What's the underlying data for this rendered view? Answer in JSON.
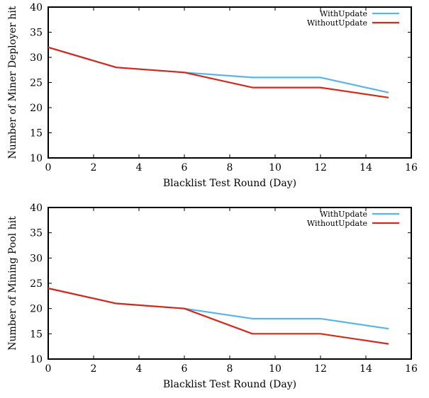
{
  "chart_data": [
    {
      "type": "line",
      "xlabel": "Blacklist Test Round (Day)",
      "ylabel": "Number of Miner Deployer hit",
      "xlim": [
        0,
        16
      ],
      "ylim": [
        10,
        40
      ],
      "xticks": [
        0,
        2,
        4,
        6,
        8,
        10,
        12,
        14,
        16
      ],
      "yticks": [
        10,
        15,
        20,
        25,
        30,
        35,
        40
      ],
      "grid": false,
      "legend": "top-right",
      "x": [
        0,
        3,
        6,
        9,
        12,
        15
      ],
      "series": [
        {
          "name": "WithUpdate",
          "color": "#5ab4e6",
          "values": [
            32,
            28,
            27,
            26,
            26,
            23
          ]
        },
        {
          "name": "WithoutUpdate",
          "color": "#d42a1c",
          "values": [
            32,
            28,
            27,
            24,
            24,
            22
          ]
        }
      ]
    },
    {
      "type": "line",
      "xlabel": "Blacklist Test Round (Day)",
      "ylabel": "Number of Mining Pool hit",
      "xlim": [
        0,
        16
      ],
      "ylim": [
        10,
        40
      ],
      "xticks": [
        0,
        2,
        4,
        6,
        8,
        10,
        12,
        14,
        16
      ],
      "yticks": [
        10,
        15,
        20,
        25,
        30,
        35,
        40
      ],
      "grid": false,
      "legend": "top-right",
      "x": [
        0,
        3,
        6,
        9,
        12,
        15
      ],
      "series": [
        {
          "name": "WithUpdate",
          "color": "#5ab4e6",
          "values": [
            24,
            21,
            20,
            18,
            18,
            16
          ]
        },
        {
          "name": "WithoutUpdate",
          "color": "#d42a1c",
          "values": [
            24,
            21,
            20,
            15,
            15,
            13
          ]
        }
      ]
    }
  ]
}
